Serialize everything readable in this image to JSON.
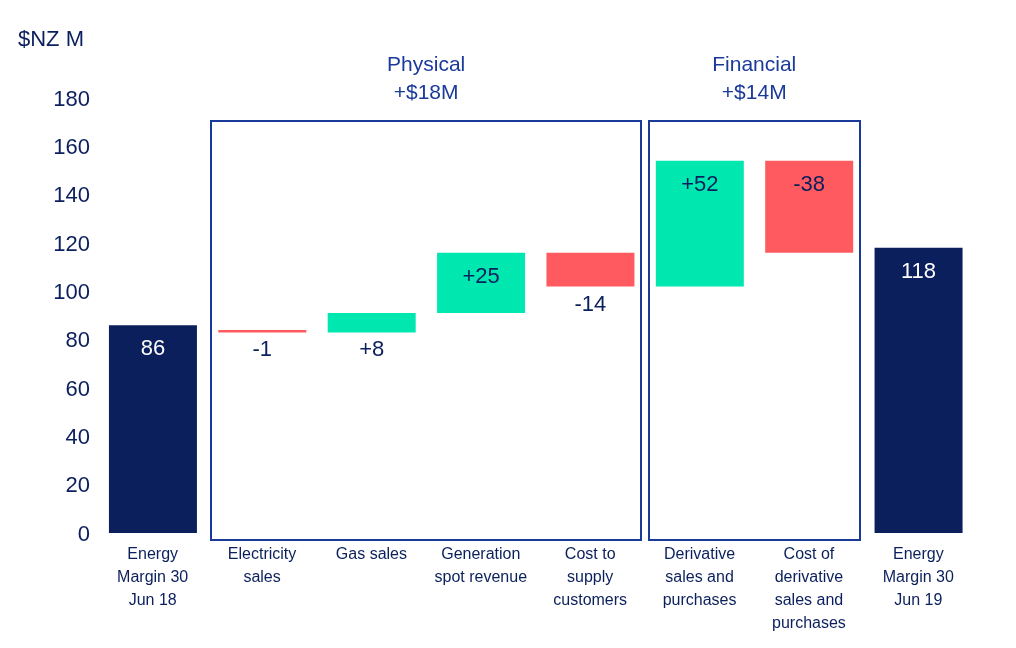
{
  "chart_data": {
    "type": "bar",
    "ylabel": "$NZ M",
    "categories": [
      "Energy Margin 30 Jun 18",
      "Electricity sales",
      "Gas sales",
      "Generation spot revenue",
      "Cost to supply customers",
      "Derivative sales and purchases",
      "Cost of derivative sales and purchases",
      "Energy Margin 30 Jun 19"
    ],
    "values": [
      86,
      -1,
      8,
      25,
      -14,
      52,
      -38,
      118
    ],
    "base": [
      0,
      84,
      83,
      91,
      116,
      102,
      154,
      0
    ],
    "colors": [
      "#0a1f5c",
      "#ff5a5f",
      "#00e8b0",
      "#00e8b0",
      "#ff5a5f",
      "#00e8b0",
      "#ff5a5f",
      "#0a1f5c"
    ],
    "value_labels": [
      "86",
      "-1",
      "+8",
      "+25",
      "-14",
      "+52",
      "-38",
      "118"
    ],
    "ylim": [
      0,
      180
    ],
    "yticks": [
      0,
      20,
      40,
      60,
      80,
      100,
      120,
      140,
      160,
      180
    ],
    "annotations": [
      "Physical +$18M",
      "Financial +$14M"
    ],
    "grid": false,
    "legend": false
  }
}
